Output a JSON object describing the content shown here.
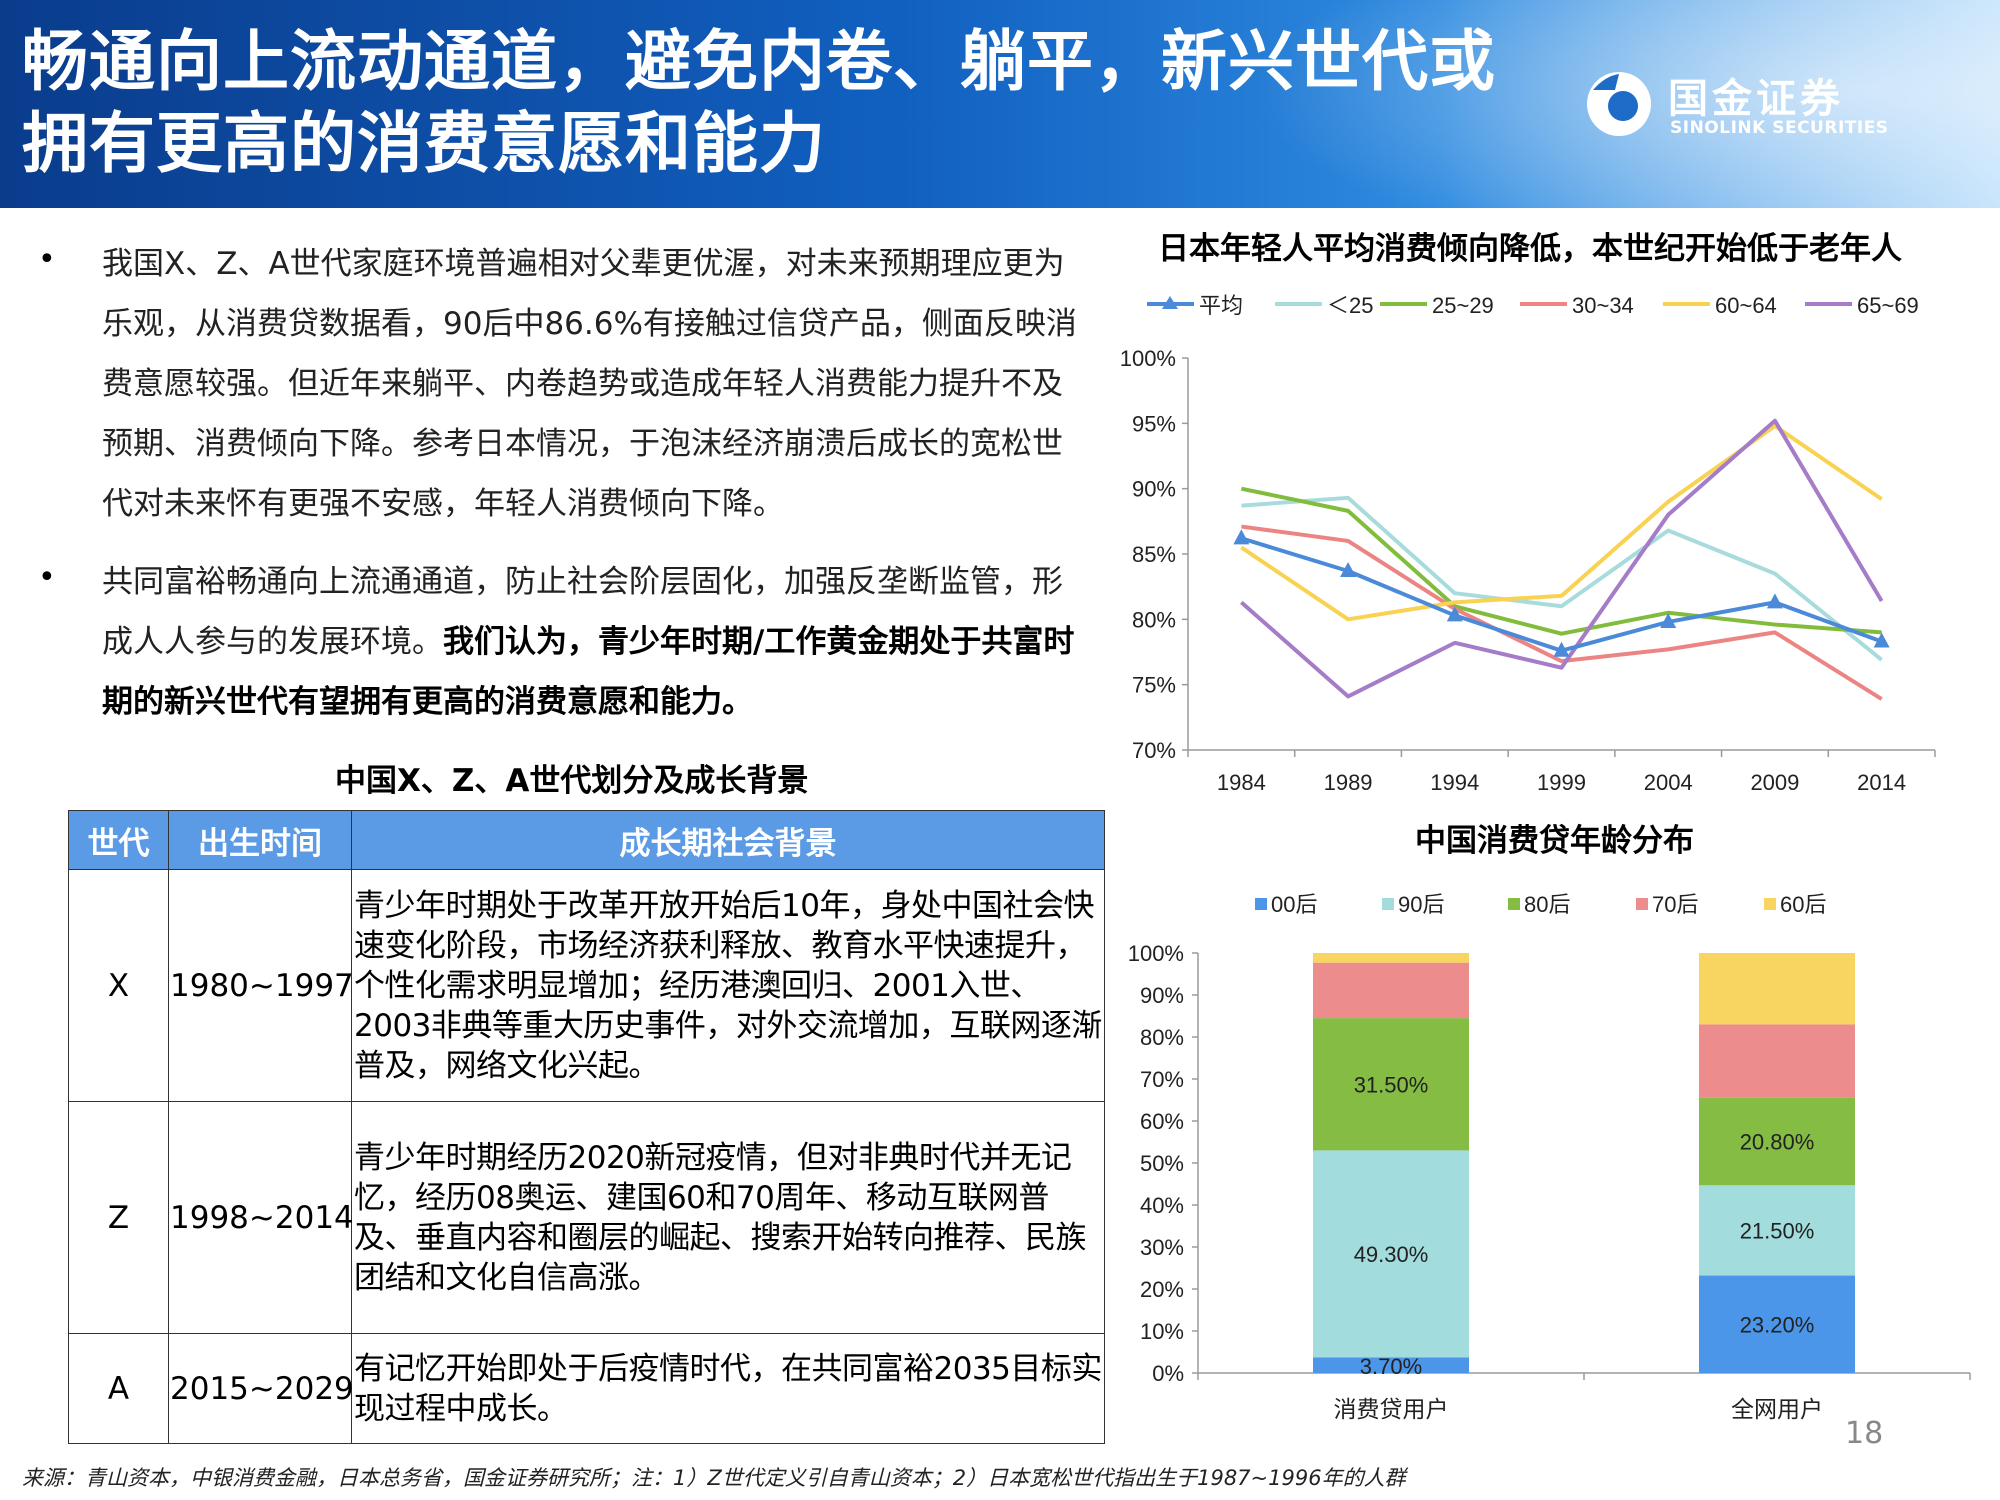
{
  "header": {
    "title_line1": "畅通向上流动通道，避免内卷、躺平，新兴世代或",
    "title_line2": "拥有更高的消费意愿和能力",
    "logo_cn": "国金证券",
    "logo_en": "SINOLINK SECURITIES"
  },
  "bullets": [
    {
      "symbol": "•",
      "text": "我国X、Z、A世代家庭环境普遍相对父辈更优渥，对未来预期理应更为乐观，从消费贷数据看，90后中86.6%有接触过信贷产品，侧面反映消费意愿较强。但近年来躺平、内卷趋势或造成年轻人消费能力提升不及预期、消费倾向下降。参考日本情况，于泡沫经济崩溃后成长的宽松世代对未来怀有更强不安感，年轻人消费倾向下降。",
      "bold": ""
    },
    {
      "symbol": "•",
      "text": "共同富裕畅通向上流通通道，防止社会阶层固化，加强反垄断监管，形成人人参与的发展环境。",
      "bold": "我们认为，青少年时期/工作黄金期处于共富时期的新兴世代有望拥有更高的消费意愿和能力。"
    }
  ],
  "table": {
    "title": "中国X、Z、A世代划分及成长背景",
    "headers": [
      "世代",
      "出生时间",
      "成长期社会背景"
    ],
    "rows": [
      [
        "X",
        "1980~1997",
        "青少年时期处于改革开放开始后10年，身处中国社会快速变化阶段，市场经济获利释放、教育水平快速提升，个性化需求明显增加；经历港澳回归、2001入世、2003非典等重大历史事件，对外交流增加，互联网逐渐普及，网络文化兴起。"
      ],
      [
        "Z",
        "1998~2014",
        "青少年时期经历2020新冠疫情，但对非典时代并无记忆，经历08奥运、建国60和70周年、移动互联网普及、垂直内容和圈层的崛起、搜索开始转向推荐、民族团结和文化自信高涨。"
      ],
      [
        "A",
        "2015~2029",
        "有记忆开始即处于后疫情时代，在共同富裕2035目标实现过程中成长。"
      ]
    ]
  },
  "chart_data": [
    {
      "type": "line",
      "title": "日本年轻人平均消费倾向降低，本世纪开始低于老年人",
      "x": [
        "1984",
        "1989",
        "1994",
        "1999",
        "2004",
        "2009",
        "2014"
      ],
      "ylim": [
        70,
        100
      ],
      "yticks": [
        "70%",
        "75%",
        "80%",
        "85%",
        "90%",
        "95%",
        "100%"
      ],
      "legend_position": "top",
      "grid": false,
      "series": [
        {
          "name": "平均",
          "color": "#4a8ad8",
          "marker": "triangle",
          "values": [
            86.2,
            83.7,
            80.3,
            77.6,
            79.8,
            81.3,
            78.3
          ]
        },
        {
          "name": "＜25",
          "color": "#a8dcdc",
          "values": [
            88.7,
            89.3,
            82.0,
            81.0,
            86.8,
            83.5,
            76.9
          ]
        },
        {
          "name": "25~29",
          "color": "#82bc3c",
          "values": [
            90.0,
            88.3,
            81.0,
            78.9,
            80.5,
            79.6,
            79.0
          ]
        },
        {
          "name": "30~34",
          "color": "#ec8484",
          "values": [
            87.1,
            86.0,
            80.8,
            76.8,
            77.7,
            79.0,
            73.9
          ]
        },
        {
          "name": "60~64",
          "color": "#f8d250",
          "values": [
            85.5,
            80.0,
            81.3,
            81.8,
            89.0,
            94.8,
            89.2
          ]
        },
        {
          "name": "65~69",
          "color": "#a47cc8",
          "values": [
            81.3,
            74.1,
            78.2,
            76.3,
            88.0,
            95.2,
            81.4
          ]
        }
      ]
    },
    {
      "type": "bar",
      "stacked": true,
      "title": "中国消费贷年龄分布",
      "categories": [
        "消费贷用户",
        "全网用户"
      ],
      "ylim": [
        0,
        100
      ],
      "yticks": [
        "0%",
        "10%",
        "20%",
        "30%",
        "40%",
        "50%",
        "60%",
        "70%",
        "80%",
        "90%",
        "100%"
      ],
      "legend_position": "top",
      "series": [
        {
          "name": "00后",
          "color": "#4b96e8",
          "values": [
            3.7,
            23.2
          ],
          "labels": [
            "3.70%",
            "23.20%"
          ]
        },
        {
          "name": "90后",
          "color": "#a2dcdc",
          "values": [
            49.3,
            21.5
          ],
          "labels": [
            "49.30%",
            "21.50%"
          ]
        },
        {
          "name": "80后",
          "color": "#84bc44",
          "values": [
            31.5,
            20.8
          ],
          "labels": [
            "31.50%",
            "20.80%"
          ]
        },
        {
          "name": "70后",
          "color": "#ec8c8c",
          "values": [
            13.2,
            17.5
          ],
          "labels": [
            "",
            ""
          ]
        },
        {
          "name": "60后",
          "color": "#f8d460",
          "values": [
            2.3,
            17.0
          ],
          "labels": [
            "",
            ""
          ]
        }
      ]
    }
  ],
  "footer": {
    "source": "来源：青山资本，中银消费金融，日本总务省，国金证券研究所；注：1）Z世代定义引自青山资本；2）日本宽松世代指出生于1987~1996年的人群",
    "page": "18"
  }
}
